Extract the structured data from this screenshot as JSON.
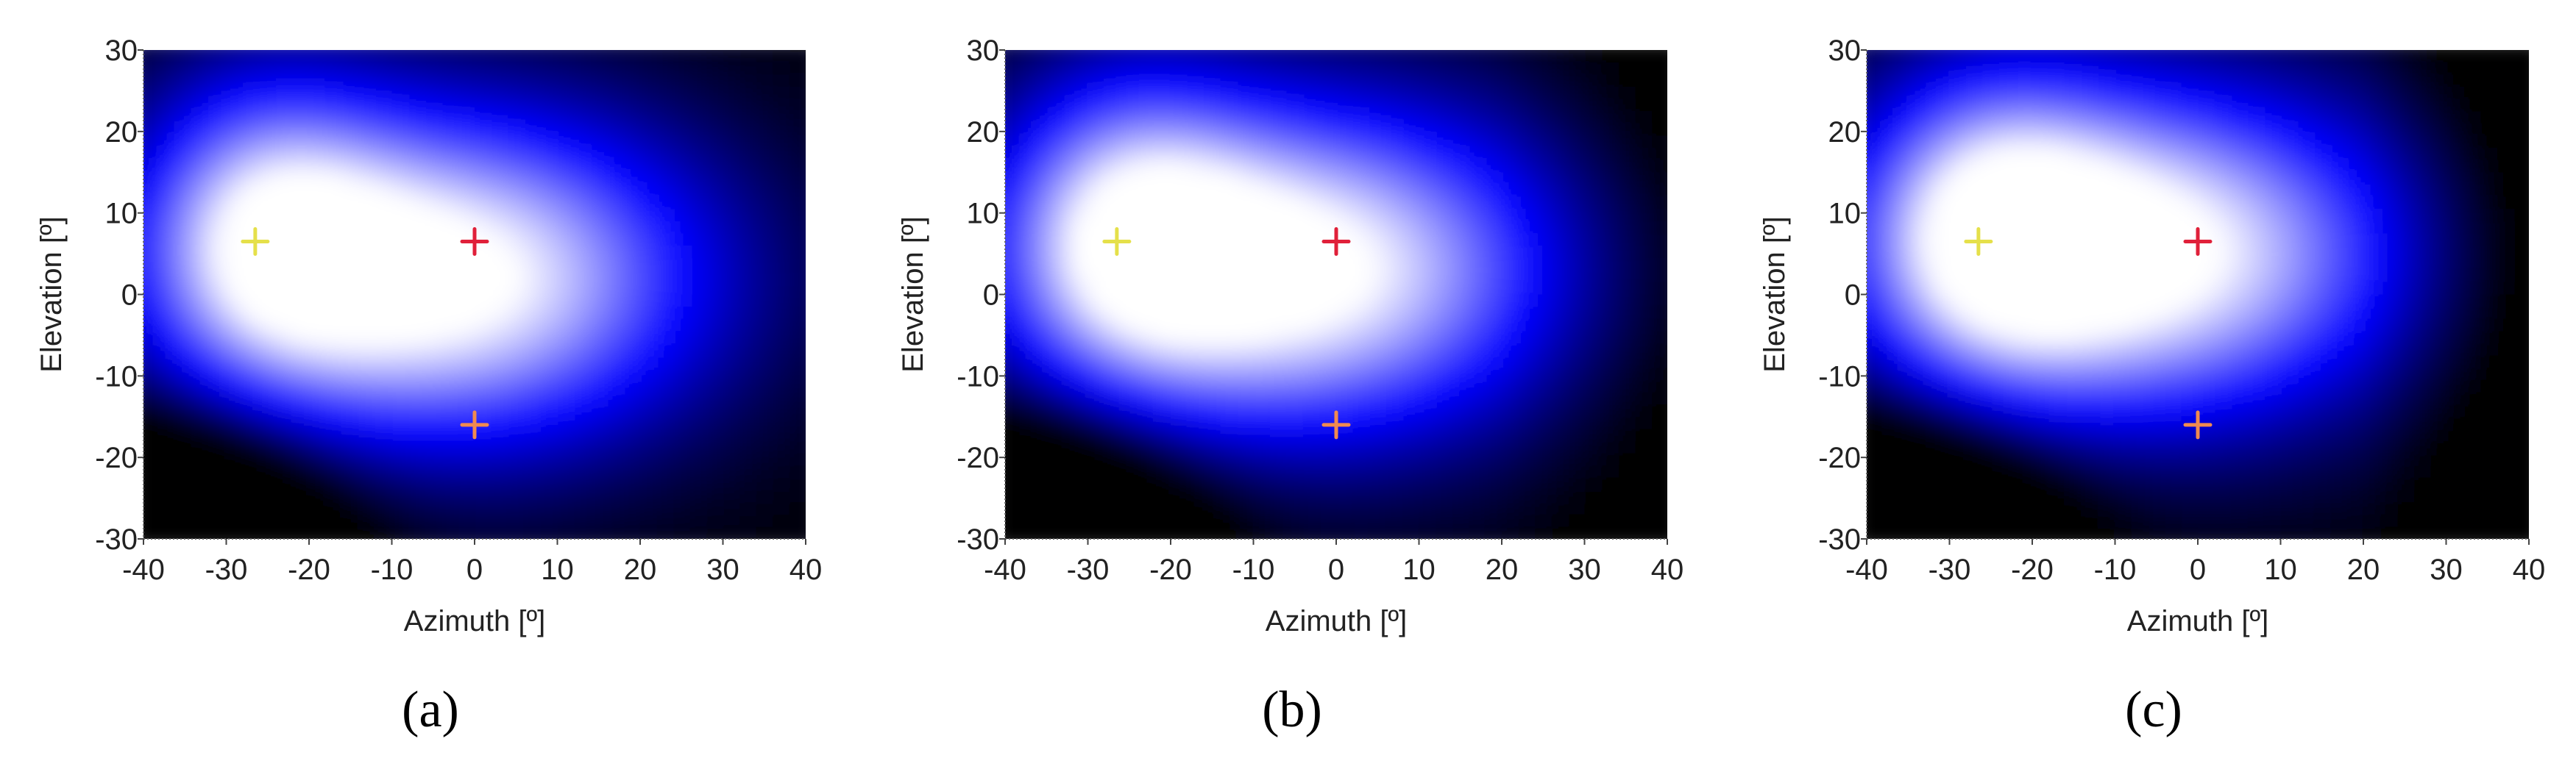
{
  "figure": {
    "captions": [
      "(a)",
      "(b)",
      "(c)"
    ]
  },
  "chart_data": [
    {
      "type": "heatmap",
      "panel": "(a)",
      "title": "",
      "xlabel": "Azimuth [º]",
      "ylabel": "Elevation [º]",
      "xlim": [
        -40,
        40
      ],
      "ylim": [
        -30,
        30
      ],
      "xticks": [
        -40,
        -30,
        -20,
        -10,
        0,
        10,
        20,
        30,
        40
      ],
      "yticks": [
        -30,
        -20,
        -10,
        0,
        10,
        20,
        30
      ],
      "colormap": [
        "#000000",
        "#0000ff",
        "#ffffff"
      ],
      "peak": {
        "az": -3,
        "el": 2
      },
      "markers": [
        {
          "az": -26.5,
          "el": 6.5,
          "color": "#e5e04a"
        },
        {
          "az": 0,
          "el": 6.5,
          "color": "#e0203a"
        },
        {
          "az": 0,
          "el": -16,
          "color": "#f08a50"
        }
      ]
    },
    {
      "type": "heatmap",
      "panel": "(b)",
      "title": "",
      "xlabel": "Azimuth [º]",
      "ylabel": "Elevation [º]",
      "xlim": [
        -40,
        40
      ],
      "ylim": [
        -30,
        30
      ],
      "xticks": [
        -40,
        -30,
        -20,
        -10,
        0,
        10,
        20,
        30,
        40
      ],
      "yticks": [
        -30,
        -20,
        -10,
        0,
        10,
        20,
        30
      ],
      "colormap": [
        "#000000",
        "#0000ff",
        "#ffffff"
      ],
      "peak": {
        "az": -4,
        "el": 3
      },
      "markers": [
        {
          "az": -26.5,
          "el": 6.5,
          "color": "#e5e04a"
        },
        {
          "az": 0,
          "el": 6.5,
          "color": "#e0203a"
        },
        {
          "az": 0,
          "el": -16,
          "color": "#f08a50"
        }
      ]
    },
    {
      "type": "heatmap",
      "panel": "(c)",
      "title": "",
      "xlabel": "Azimuth [º]",
      "ylabel": "Elevation [º]",
      "xlim": [
        -40,
        40
      ],
      "ylim": [
        -30,
        30
      ],
      "xticks": [
        -40,
        -30,
        -20,
        -10,
        0,
        10,
        20,
        30,
        40
      ],
      "yticks": [
        -30,
        -20,
        -10,
        0,
        10,
        20,
        30
      ],
      "colormap": [
        "#000000",
        "#0000ff",
        "#ffffff"
      ],
      "peak": {
        "az": -6,
        "el": 5
      },
      "markers": [
        {
          "az": -26.5,
          "el": 6.5,
          "color": "#e5e04a"
        },
        {
          "az": 0,
          "el": 6.5,
          "color": "#e0203a"
        },
        {
          "az": 0,
          "el": -16,
          "color": "#f08a50"
        }
      ]
    }
  ]
}
